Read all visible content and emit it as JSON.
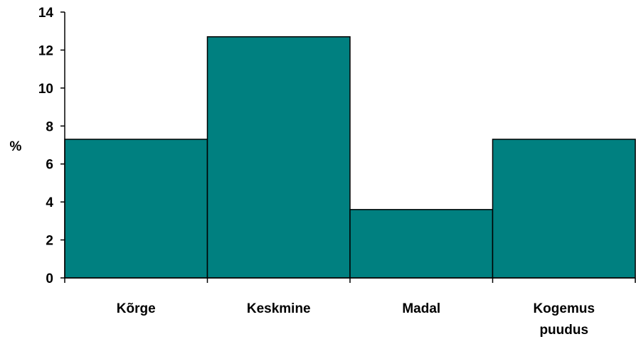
{
  "chart_data": {
    "type": "bar",
    "categories": [
      [
        "Kõrge"
      ],
      [
        "Keskmine"
      ],
      [
        "Madal"
      ],
      [
        "Kogemus",
        "puudus"
      ]
    ],
    "values": [
      7.3,
      12.7,
      3.6,
      7.3
    ],
    "ylabel": "%",
    "ylim": [
      0,
      14
    ],
    "yticks": [
      "0",
      "2",
      "4",
      "6",
      "8",
      "10",
      "12",
      "14"
    ],
    "grid": false,
    "bar_color": "#008080",
    "bar_stroke": "#000000"
  }
}
